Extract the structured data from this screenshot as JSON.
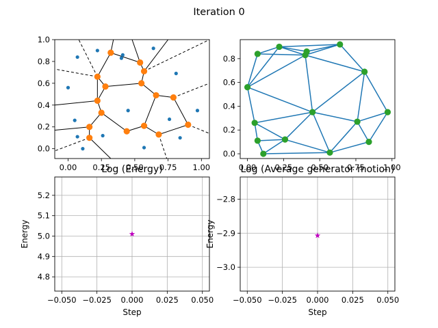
{
  "figure": {
    "suptitle": "Iteration 0"
  },
  "colors": {
    "generator": "#1f77b4",
    "vertex": "#ff7f0e",
    "edge": "#000000",
    "delaunay_edge": "#1f77b4",
    "delaunay_point": "#2ca02c",
    "marker": "#bf00bf",
    "grid": "#b0b0b0"
  },
  "chart_data": [
    {
      "type": "scatter",
      "panel": "voronoi",
      "title": "",
      "xlabel": "",
      "ylabel": "",
      "xlim": [
        -0.1,
        1.06
      ],
      "ylim": [
        -0.09,
        1.0
      ],
      "xticks": [
        {
          "v": 0.0,
          "label": "0.00"
        },
        {
          "v": 0.25,
          "label": "0.25"
        },
        {
          "v": 0.5,
          "label": "0.50"
        },
        {
          "v": 0.75,
          "label": "0.75"
        },
        {
          "v": 1.0,
          "label": "1.00"
        }
      ],
      "yticks": [
        {
          "v": 0.0,
          "label": "0.0"
        },
        {
          "v": 0.2,
          "label": "0.2"
        },
        {
          "v": 0.4,
          "label": "0.4"
        },
        {
          "v": 0.6,
          "label": "0.6"
        },
        {
          "v": 0.8,
          "label": "0.8"
        },
        {
          "v": 1.0,
          "label": "1.0"
        }
      ],
      "grid": false,
      "generators": [
        [
          0.07,
          0.84
        ],
        [
          0.22,
          0.9
        ],
        [
          0.41,
          0.86
        ],
        [
          0.4,
          0.83
        ],
        [
          0.64,
          0.92
        ],
        [
          0.81,
          0.69
        ],
        [
          0.0,
          0.56
        ],
        [
          0.05,
          0.26
        ],
        [
          0.45,
          0.35
        ],
        [
          0.97,
          0.35
        ],
        [
          0.76,
          0.27
        ],
        [
          0.07,
          0.11
        ],
        [
          0.26,
          0.12
        ],
        [
          0.84,
          0.1
        ],
        [
          0.11,
          0.0
        ],
        [
          0.57,
          0.01
        ]
      ],
      "vertices": [
        [
          0.32,
          0.88
        ],
        [
          0.54,
          0.79
        ],
        [
          0.22,
          0.66
        ],
        [
          0.28,
          0.57
        ],
        [
          0.57,
          0.71
        ],
        [
          0.55,
          0.6
        ],
        [
          0.66,
          0.49
        ],
        [
          0.79,
          0.47
        ],
        [
          0.22,
          0.44
        ],
        [
          0.25,
          0.33
        ],
        [
          0.9,
          0.22
        ],
        [
          0.16,
          0.2
        ],
        [
          0.44,
          0.16
        ],
        [
          0.57,
          0.21
        ],
        [
          0.68,
          0.13
        ],
        [
          0.16,
          0.1
        ]
      ],
      "edges": [
        [
          0,
          2
        ],
        [
          0,
          1
        ],
        [
          1,
          4
        ],
        [
          2,
          3
        ],
        [
          3,
          5
        ],
        [
          4,
          5
        ],
        [
          5,
          6
        ],
        [
          6,
          7
        ],
        [
          3,
          8
        ],
        [
          8,
          9
        ],
        [
          8,
          2
        ],
        [
          9,
          12
        ],
        [
          9,
          11
        ],
        [
          11,
          15
        ],
        [
          12,
          13
        ],
        [
          13,
          14
        ],
        [
          13,
          6
        ],
        [
          7,
          10
        ],
        [
          10,
          14
        ]
      ],
      "ray_edges": [
        {
          "from": [
            0.32,
            0.88
          ],
          "to": [
            0.34,
            1.0
          ],
          "style": "solid"
        },
        {
          "from": [
            0.54,
            0.79
          ],
          "to": [
            0.48,
            1.0
          ],
          "style": "solid"
        },
        {
          "from": [
            0.57,
            0.71
          ],
          "to": [
            0.75,
            1.0
          ],
          "style": "solid"
        },
        {
          "from": [
            0.22,
            0.66
          ],
          "to": [
            -0.1,
            0.73
          ],
          "style": "dashed"
        },
        {
          "from": [
            0.22,
            0.66
          ],
          "to": [
            0.08,
            1.0
          ],
          "style": "dashed"
        },
        {
          "from": [
            0.79,
            0.47
          ],
          "to": [
            1.06,
            0.6
          ],
          "style": "dashed"
        },
        {
          "from": [
            0.22,
            0.44
          ],
          "to": [
            -0.1,
            0.4
          ],
          "style": "solid"
        },
        {
          "from": [
            0.16,
            0.2
          ],
          "to": [
            -0.1,
            0.17
          ],
          "style": "solid"
        },
        {
          "from": [
            0.16,
            0.1
          ],
          "to": [
            -0.1,
            -0.02
          ],
          "style": "dashed"
        },
        {
          "from": [
            0.16,
            0.1
          ],
          "to": [
            0.32,
            -0.09
          ],
          "style": "solid"
        },
        {
          "from": [
            0.9,
            0.22
          ],
          "to": [
            1.06,
            0.14
          ],
          "style": "dashed"
        },
        {
          "from": [
            0.68,
            0.13
          ],
          "to": [
            0.74,
            -0.09
          ],
          "style": "dashed"
        },
        {
          "from": [
            0.57,
            0.71
          ],
          "to": [
            1.06,
            1.0
          ],
          "style": "dashed"
        }
      ]
    },
    {
      "type": "line",
      "panel": "delaunay",
      "title": "",
      "xlabel": "",
      "ylabel": "",
      "xlim": [
        -0.05,
        1.02
      ],
      "ylim": [
        -0.04,
        0.96
      ],
      "xticks": [
        {
          "v": 0.0,
          "label": "0.00"
        },
        {
          "v": 0.25,
          "label": "0.25"
        },
        {
          "v": 0.5,
          "label": "0.50"
        },
        {
          "v": 0.75,
          "label": "0.75"
        },
        {
          "v": 1.0,
          "label": "1.00"
        }
      ],
      "yticks": [
        {
          "v": 0.0,
          "label": "0.0"
        },
        {
          "v": 0.2,
          "label": "0.2"
        },
        {
          "v": 0.4,
          "label": "0.4"
        },
        {
          "v": 0.6,
          "label": "0.6"
        },
        {
          "v": 0.8,
          "label": "0.8"
        }
      ],
      "grid": false,
      "points": [
        [
          0.07,
          0.84
        ],
        [
          0.22,
          0.9
        ],
        [
          0.41,
          0.86
        ],
        [
          0.4,
          0.83
        ],
        [
          0.64,
          0.92
        ],
        [
          0.81,
          0.69
        ],
        [
          0.0,
          0.56
        ],
        [
          0.05,
          0.26
        ],
        [
          0.45,
          0.35
        ],
        [
          0.97,
          0.35
        ],
        [
          0.76,
          0.27
        ],
        [
          0.07,
          0.11
        ],
        [
          0.26,
          0.12
        ],
        [
          0.84,
          0.1
        ],
        [
          0.11,
          0.0
        ],
        [
          0.57,
          0.01
        ]
      ],
      "edges": [
        [
          0,
          1
        ],
        [
          0,
          6
        ],
        [
          0,
          3
        ],
        [
          1,
          2
        ],
        [
          1,
          3
        ],
        [
          1,
          4
        ],
        [
          2,
          3
        ],
        [
          2,
          4
        ],
        [
          3,
          4
        ],
        [
          3,
          6
        ],
        [
          4,
          5
        ],
        [
          3,
          5
        ],
        [
          3,
          8
        ],
        [
          5,
          8
        ],
        [
          5,
          9
        ],
        [
          5,
          10
        ],
        [
          6,
          8
        ],
        [
          6,
          7
        ],
        [
          6,
          1
        ],
        [
          7,
          8
        ],
        [
          7,
          11
        ],
        [
          8,
          12
        ],
        [
          8,
          15
        ],
        [
          8,
          10
        ],
        [
          7,
          12
        ],
        [
          11,
          12
        ],
        [
          11,
          14
        ],
        [
          12,
          14
        ],
        [
          12,
          15
        ],
        [
          14,
          15
        ],
        [
          10,
          15
        ],
        [
          10,
          13
        ],
        [
          9,
          10
        ],
        [
          9,
          13
        ],
        [
          13,
          15
        ]
      ]
    },
    {
      "type": "scatter",
      "panel": "energy",
      "title": "Log (Energy)",
      "xlabel": "Step",
      "ylabel": "Energy",
      "xlim": [
        -0.055,
        0.055
      ],
      "ylim": [
        4.73,
        5.29
      ],
      "xticks": [
        {
          "v": -0.05,
          "label": "−0.050"
        },
        {
          "v": -0.025,
          "label": "−0.025"
        },
        {
          "v": 0.0,
          "label": "0.000"
        },
        {
          "v": 0.025,
          "label": "0.025"
        },
        {
          "v": 0.05,
          "label": "0.050"
        }
      ],
      "yticks": [
        {
          "v": 4.8,
          "label": "4.8"
        },
        {
          "v": 4.9,
          "label": "4.9"
        },
        {
          "v": 5.0,
          "label": "5.0"
        },
        {
          "v": 5.1,
          "label": "5.1"
        },
        {
          "v": 5.2,
          "label": "5.2"
        }
      ],
      "grid": true,
      "x": [
        0
      ],
      "y": [
        5.01
      ],
      "marker": "star"
    },
    {
      "type": "scatter",
      "panel": "motion",
      "title": "Log (Average generator motion)",
      "xlabel": "Step",
      "ylabel": "Energy",
      "xlim": [
        -0.055,
        0.055
      ],
      "ylim": [
        -3.07,
        -2.735
      ],
      "xticks": [
        {
          "v": -0.05,
          "label": "−0.050"
        },
        {
          "v": -0.025,
          "label": "−0.025"
        },
        {
          "v": 0.0,
          "label": "0.000"
        },
        {
          "v": 0.025,
          "label": "0.025"
        },
        {
          "v": 0.05,
          "label": "0.050"
        }
      ],
      "yticks": [
        {
          "v": -2.8,
          "label": "−2.8"
        },
        {
          "v": -2.9,
          "label": "−2.9"
        },
        {
          "v": -3.0,
          "label": "−3.0"
        }
      ],
      "grid": true,
      "x": [
        0
      ],
      "y": [
        -2.907
      ],
      "marker": "star"
    }
  ]
}
